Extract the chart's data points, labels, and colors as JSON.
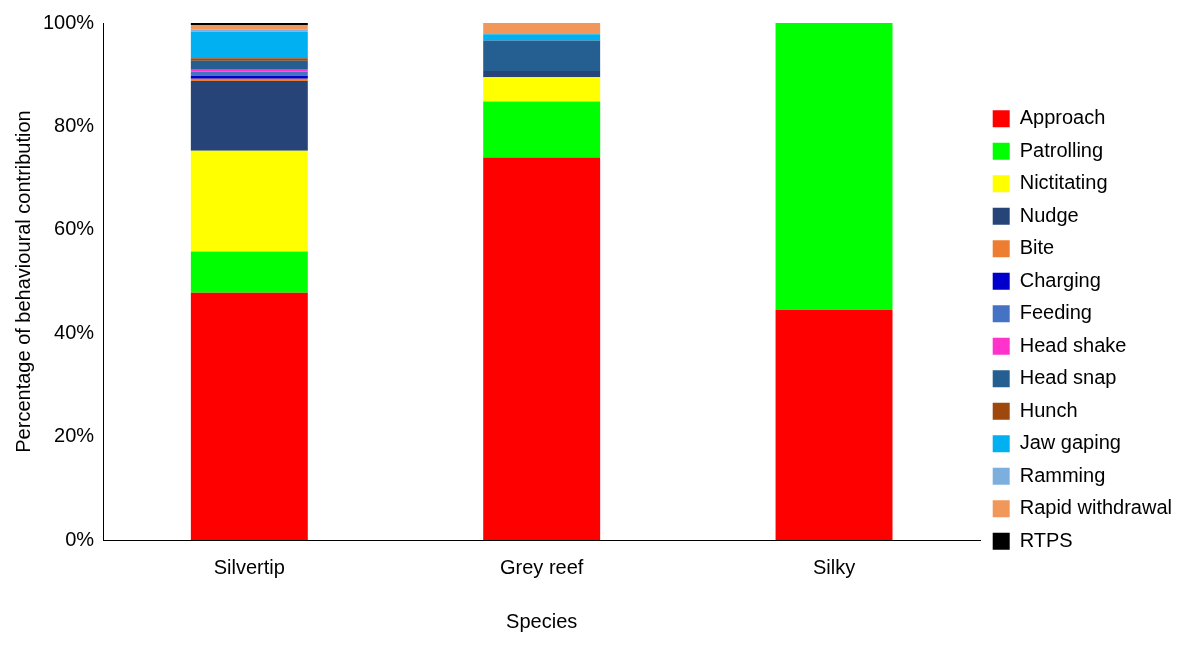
{
  "chart_data": {
    "type": "bar",
    "stacked": true,
    "xlabel": "Species",
    "ylabel": "Percentage of behavioural contribution",
    "categories": [
      "Silvertip",
      "Grey reef",
      "Silky"
    ],
    "ylim": [
      0,
      100
    ],
    "yticks": [
      {
        "value": 0,
        "label": "0%"
      },
      {
        "value": 20,
        "label": "20%"
      },
      {
        "value": 40,
        "label": "40%"
      },
      {
        "value": 60,
        "label": "60%"
      },
      {
        "value": 80,
        "label": "80%"
      },
      {
        "value": 100,
        "label": "100%"
      }
    ],
    "grid": false,
    "legend": "right",
    "series": [
      {
        "name": "Approach",
        "color": "#ff0000",
        "values": [
          47.8,
          74.0,
          44.5
        ]
      },
      {
        "name": "Patrolling",
        "color": "#00ff00",
        "values": [
          8.0,
          10.8,
          55.5
        ]
      },
      {
        "name": "Nictitating",
        "color": "#ffff00",
        "values": [
          19.5,
          4.7,
          0
        ]
      },
      {
        "name": "Nudge",
        "color": "#264478",
        "values": [
          13.5,
          1.2,
          0
        ]
      },
      {
        "name": "Bite",
        "color": "#ed7d31",
        "values": [
          0.4,
          0,
          0
        ]
      },
      {
        "name": "Charging",
        "color": "#0000cc",
        "values": [
          0.6,
          0,
          0
        ]
      },
      {
        "name": "Feeding",
        "color": "#4472c4",
        "values": [
          0.8,
          0,
          0
        ]
      },
      {
        "name": "Head shake",
        "color": "#ff33cc",
        "values": [
          0.5,
          0,
          0
        ]
      },
      {
        "name": "Head snap",
        "color": "#255e91",
        "values": [
          1.6,
          5.9,
          0
        ]
      },
      {
        "name": "Hunch",
        "color": "#9e480e",
        "values": [
          0.5,
          0,
          0
        ]
      },
      {
        "name": "Jaw gaping",
        "color": "#00b0f0",
        "values": [
          5.1,
          1.2,
          0
        ]
      },
      {
        "name": "Ramming",
        "color": "#7cafdd",
        "values": [
          0.4,
          0,
          0
        ]
      },
      {
        "name": "Rapid withdrawal",
        "color": "#f1975a",
        "values": [
          0.9,
          2.2,
          0
        ]
      },
      {
        "name": "RTPS",
        "color": "#000000",
        "values": [
          0.4,
          0,
          0
        ]
      }
    ]
  }
}
